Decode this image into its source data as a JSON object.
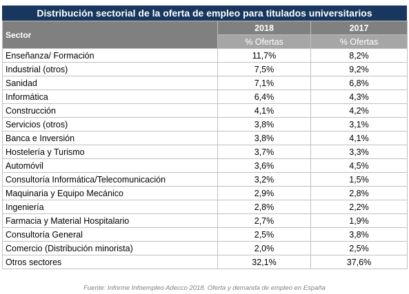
{
  "title": "Distribución sectorial de la oferta de empleo para titulados universitarios",
  "table": {
    "header": [
      "Sector",
      "2018",
      "2017"
    ],
    "subheader": [
      "% Ofertas",
      "% Ofertas"
    ],
    "rows": [
      [
        "Enseñanza/ Formación",
        "11,7%",
        "8,2%"
      ],
      [
        "Industrial (otros)",
        "7,5%",
        "9,2%"
      ],
      [
        "Sanidad",
        "7,1%",
        "6,8%"
      ],
      [
        "Informática",
        "6,4%",
        "4,3%"
      ],
      [
        "Construcción",
        "4,1%",
        "4,2%"
      ],
      [
        "Servicios (otros)",
        "3,8%",
        "3,1%"
      ],
      [
        "Banca e Inversión",
        "3,8%",
        "4,1%"
      ],
      [
        "Hostelería y Turismo",
        "3,7%",
        "3,3%"
      ],
      [
        "Automóvil",
        "3,6%",
        "4,5%"
      ],
      [
        "Consultoría Informática/Telecomunicación",
        "3,2%",
        "1,5%"
      ],
      [
        "Maquinaria y Equipo Mecánico",
        "2,9%",
        "2,8%"
      ],
      [
        "Ingeniería",
        "2,8%",
        "2,2%"
      ],
      [
        "Farmacia y Material Hospitalario",
        "2,7%",
        "1,9%"
      ],
      [
        "Consultoría General",
        "2,5%",
        "3,8%"
      ],
      [
        "Comercio (Distribución minorista)",
        "2,0%",
        "2,5%"
      ],
      [
        "Otros sectores",
        "32,1%",
        "37,6%"
      ]
    ]
  },
  "source": "Fuente: Informe Infoempleo Adecco 2018. Oferta y demanda de empleo en España"
}
